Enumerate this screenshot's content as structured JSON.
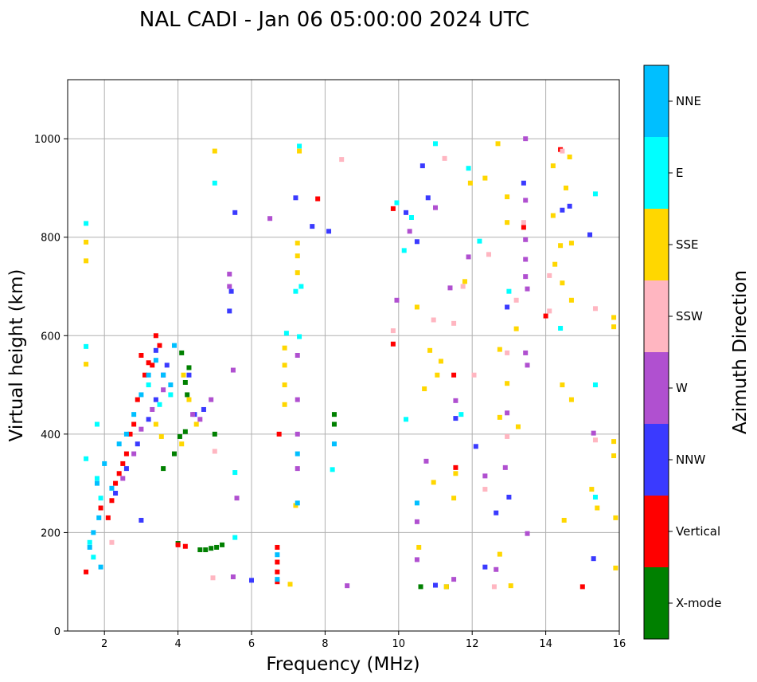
{
  "chart_data": {
    "type": "scatter",
    "title": "NAL CADI - Jan 06 05:00:00 2024 UTC",
    "xlabel": "Frequency (MHz)",
    "ylabel": "Virtual height (km)",
    "xlim": [
      1.0,
      16.0
    ],
    "ylim": [
      0,
      1120
    ],
    "xticks": [
      2,
      4,
      6,
      8,
      10,
      12,
      14,
      16
    ],
    "yticks": [
      0,
      200,
      400,
      600,
      800,
      1000
    ],
    "grid": true,
    "colorbar": {
      "label": "Azimuth Direction",
      "categories": [
        {
          "name": "X-mode",
          "color": "#008000"
        },
        {
          "name": "Vertical",
          "color": "#ff0000"
        },
        {
          "name": "NNW",
          "color": "#3a3aff"
        },
        {
          "name": "W",
          "color": "#b050d0"
        },
        {
          "name": "SSW",
          "color": "#ffb6c1"
        },
        {
          "name": "SSE",
          "color": "#ffd700"
        },
        {
          "name": "E",
          "color": "#00ffff"
        },
        {
          "name": "NNE",
          "color": "#00bfff"
        }
      ]
    },
    "series": [
      {
        "name": "X-mode",
        "points": [
          [
            4.0,
            178
          ],
          [
            4.05,
            395
          ],
          [
            4.2,
            405
          ],
          [
            4.25,
            480
          ],
          [
            4.2,
            505
          ],
          [
            4.3,
            535
          ],
          [
            4.1,
            565
          ],
          [
            3.9,
            360
          ],
          [
            4.6,
            165
          ],
          [
            4.75,
            165
          ],
          [
            4.9,
            168
          ],
          [
            5.05,
            170
          ],
          [
            5.2,
            175
          ],
          [
            5.0,
            400
          ],
          [
            8.25,
            440
          ],
          [
            8.25,
            420
          ],
          [
            10.6,
            90
          ],
          [
            11.3,
            90
          ],
          [
            3.6,
            330
          ]
        ]
      },
      {
        "name": "Vertical",
        "points": [
          [
            1.9,
            250
          ],
          [
            2.2,
            265
          ],
          [
            2.3,
            300
          ],
          [
            2.4,
            320
          ],
          [
            2.5,
            340
          ],
          [
            2.6,
            360
          ],
          [
            2.7,
            400
          ],
          [
            2.8,
            420
          ],
          [
            2.9,
            470
          ],
          [
            3.0,
            560
          ],
          [
            3.1,
            520
          ],
          [
            3.2,
            545
          ],
          [
            3.3,
            540
          ],
          [
            3.4,
            600
          ],
          [
            3.5,
            580
          ],
          [
            1.5,
            120
          ],
          [
            2.1,
            230
          ],
          [
            4.0,
            175
          ],
          [
            4.2,
            172
          ],
          [
            6.7,
            120
          ],
          [
            6.7,
            140
          ],
          [
            6.7,
            100
          ],
          [
            6.7,
            170
          ],
          [
            6.75,
            400
          ],
          [
            7.8,
            878
          ],
          [
            9.85,
            583
          ],
          [
            9.85,
            858
          ],
          [
            11.5,
            520
          ],
          [
            11.55,
            332
          ],
          [
            13.4,
            820
          ],
          [
            14.0,
            640
          ],
          [
            14.4,
            978
          ],
          [
            15.0,
            90
          ]
        ]
      },
      {
        "name": "NNW",
        "points": [
          [
            2.3,
            280
          ],
          [
            2.6,
            330
          ],
          [
            2.9,
            380
          ],
          [
            3.2,
            430
          ],
          [
            3.4,
            470
          ],
          [
            3.6,
            520
          ],
          [
            3.0,
            225
          ],
          [
            3.4,
            570
          ],
          [
            3.7,
            540
          ],
          [
            4.3,
            520
          ],
          [
            4.45,
            440
          ],
          [
            4.7,
            450
          ],
          [
            5.4,
            650
          ],
          [
            5.45,
            690
          ],
          [
            5.55,
            850
          ],
          [
            6.0,
            103
          ],
          [
            7.2,
            880
          ],
          [
            7.65,
            822
          ],
          [
            8.1,
            812
          ],
          [
            10.2,
            850
          ],
          [
            10.5,
            791
          ],
          [
            10.65,
            945
          ],
          [
            10.8,
            880
          ],
          [
            11.0,
            93
          ],
          [
            11.55,
            432
          ],
          [
            12.1,
            375
          ],
          [
            12.35,
            130
          ],
          [
            12.65,
            240
          ],
          [
            12.95,
            658
          ],
          [
            13.0,
            272
          ],
          [
            13.4,
            910
          ],
          [
            14.45,
            855
          ],
          [
            14.65,
            863
          ],
          [
            15.2,
            805
          ],
          [
            15.3,
            147
          ]
        ]
      },
      {
        "name": "W",
        "points": [
          [
            2.5,
            310
          ],
          [
            2.8,
            360
          ],
          [
            3.0,
            410
          ],
          [
            3.3,
            450
          ],
          [
            3.6,
            490
          ],
          [
            4.4,
            440
          ],
          [
            4.6,
            430
          ],
          [
            4.9,
            470
          ],
          [
            5.4,
            700
          ],
          [
            5.4,
            725
          ],
          [
            5.5,
            530
          ],
          [
            5.6,
            270
          ],
          [
            5.5,
            110
          ],
          [
            6.5,
            838
          ],
          [
            7.25,
            560
          ],
          [
            7.25,
            470
          ],
          [
            7.25,
            400
          ],
          [
            7.25,
            330
          ],
          [
            8.6,
            92
          ],
          [
            9.95,
            672
          ],
          [
            10.3,
            812
          ],
          [
            10.5,
            222
          ],
          [
            10.5,
            145
          ],
          [
            10.75,
            345
          ],
          [
            11.0,
            860
          ],
          [
            11.4,
            697
          ],
          [
            11.5,
            105
          ],
          [
            11.55,
            468
          ],
          [
            11.9,
            760
          ],
          [
            12.35,
            315
          ],
          [
            12.65,
            125
          ],
          [
            12.9,
            332
          ],
          [
            12.95,
            443
          ],
          [
            13.45,
            1000
          ],
          [
            13.45,
            875
          ],
          [
            13.45,
            795
          ],
          [
            13.45,
            755
          ],
          [
            13.45,
            720
          ],
          [
            13.45,
            565
          ],
          [
            13.5,
            540
          ],
          [
            13.5,
            695
          ],
          [
            13.5,
            198
          ],
          [
            15.3,
            402
          ]
        ]
      },
      {
        "name": "SSW",
        "points": [
          [
            2.2,
            180
          ],
          [
            4.95,
            108
          ],
          [
            5.0,
            365
          ],
          [
            8.45,
            958
          ],
          [
            9.85,
            610
          ],
          [
            10.95,
            632
          ],
          [
            11.25,
            960
          ],
          [
            11.5,
            625
          ],
          [
            11.75,
            700
          ],
          [
            12.05,
            520
          ],
          [
            12.35,
            288
          ],
          [
            12.45,
            765
          ],
          [
            12.6,
            90
          ],
          [
            12.95,
            395
          ],
          [
            12.95,
            565
          ],
          [
            13.2,
            672
          ],
          [
            13.4,
            830
          ],
          [
            14.1,
            650
          ],
          [
            14.1,
            722
          ],
          [
            14.45,
            975
          ],
          [
            15.35,
            655
          ],
          [
            15.35,
            388
          ]
        ]
      },
      {
        "name": "SSE",
        "points": [
          [
            1.5,
            790
          ],
          [
            1.5,
            752
          ],
          [
            1.5,
            542
          ],
          [
            3.4,
            420
          ],
          [
            3.55,
            395
          ],
          [
            4.1,
            380
          ],
          [
            4.15,
            520
          ],
          [
            4.3,
            470
          ],
          [
            4.5,
            420
          ],
          [
            5.0,
            975
          ],
          [
            6.9,
            500
          ],
          [
            6.9,
            460
          ],
          [
            6.9,
            540
          ],
          [
            6.9,
            575
          ],
          [
            7.05,
            95
          ],
          [
            7.2,
            255
          ],
          [
            7.25,
            788
          ],
          [
            7.25,
            762
          ],
          [
            7.25,
            728
          ],
          [
            7.3,
            975
          ],
          [
            10.5,
            658
          ],
          [
            10.55,
            170
          ],
          [
            10.7,
            492
          ],
          [
            10.85,
            570
          ],
          [
            10.95,
            302
          ],
          [
            11.05,
            520
          ],
          [
            11.15,
            548
          ],
          [
            11.3,
            90
          ],
          [
            11.5,
            270
          ],
          [
            11.55,
            320
          ],
          [
            11.8,
            710
          ],
          [
            11.95,
            910
          ],
          [
            12.35,
            920
          ],
          [
            12.7,
            990
          ],
          [
            12.75,
            572
          ],
          [
            12.75,
            434
          ],
          [
            12.75,
            156
          ],
          [
            12.95,
            503
          ],
          [
            12.95,
            882
          ],
          [
            12.95,
            830
          ],
          [
            13.05,
            92
          ],
          [
            13.2,
            614
          ],
          [
            13.25,
            415
          ],
          [
            14.2,
            945
          ],
          [
            14.2,
            844
          ],
          [
            14.25,
            745
          ],
          [
            14.4,
            783
          ],
          [
            14.45,
            707
          ],
          [
            14.45,
            500
          ],
          [
            14.5,
            225
          ],
          [
            14.55,
            900
          ],
          [
            14.65,
            963
          ],
          [
            14.7,
            788
          ],
          [
            14.7,
            672
          ],
          [
            14.7,
            470
          ],
          [
            15.25,
            288
          ],
          [
            15.4,
            250
          ],
          [
            15.85,
            637
          ],
          [
            15.85,
            618
          ],
          [
            15.85,
            385
          ],
          [
            15.85,
            356
          ],
          [
            15.9,
            230
          ],
          [
            15.9,
            128
          ]
        ]
      },
      {
        "name": "E",
        "points": [
          [
            1.5,
            828
          ],
          [
            1.5,
            578
          ],
          [
            1.5,
            350
          ],
          [
            1.8,
            420
          ],
          [
            1.8,
            310
          ],
          [
            1.9,
            270
          ],
          [
            1.6,
            180
          ],
          [
            1.7,
            150
          ],
          [
            3.2,
            500
          ],
          [
            3.5,
            460
          ],
          [
            3.8,
            480
          ],
          [
            5.0,
            910
          ],
          [
            5.55,
            190
          ],
          [
            5.55,
            322
          ],
          [
            6.95,
            605
          ],
          [
            7.2,
            690
          ],
          [
            7.3,
            985
          ],
          [
            7.3,
            598
          ],
          [
            7.35,
            700
          ],
          [
            8.2,
            328
          ],
          [
            9.95,
            870
          ],
          [
            10.15,
            773
          ],
          [
            10.2,
            430
          ],
          [
            10.35,
            840
          ],
          [
            11.0,
            990
          ],
          [
            11.7,
            440
          ],
          [
            11.9,
            940
          ],
          [
            12.2,
            792
          ],
          [
            13.0,
            690
          ],
          [
            14.4,
            615
          ],
          [
            15.35,
            888
          ],
          [
            15.35,
            500
          ],
          [
            15.35,
            272
          ]
        ]
      },
      {
        "name": "NNE",
        "points": [
          [
            1.8,
            300
          ],
          [
            2.0,
            340
          ],
          [
            2.2,
            290
          ],
          [
            2.4,
            380
          ],
          [
            2.6,
            400
          ],
          [
            2.8,
            440
          ],
          [
            3.0,
            480
          ],
          [
            3.2,
            520
          ],
          [
            3.4,
            550
          ],
          [
            3.6,
            520
          ],
          [
            3.8,
            500
          ],
          [
            3.9,
            580
          ],
          [
            1.6,
            170
          ],
          [
            1.7,
            200
          ],
          [
            1.85,
            230
          ],
          [
            1.9,
            130
          ],
          [
            6.7,
            105
          ],
          [
            6.7,
            155
          ],
          [
            7.25,
            260
          ],
          [
            7.25,
            360
          ],
          [
            8.25,
            380
          ],
          [
            10.5,
            260
          ]
        ]
      }
    ]
  }
}
